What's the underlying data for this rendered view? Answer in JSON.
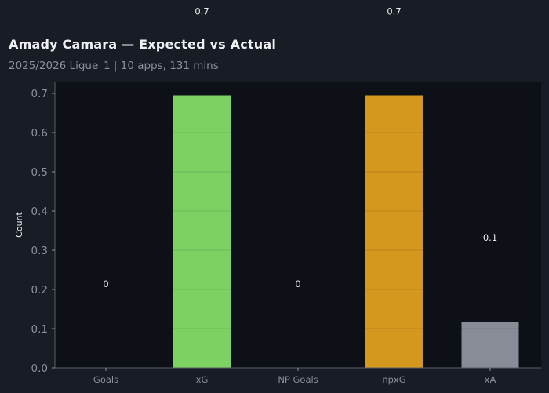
{
  "chart_data": {
    "type": "bar",
    "title": "Amady Camara — Expected vs Actual",
    "subtitle": "2025/2026 Ligue_1 | 10 apps, 131 mins",
    "xlabel": "",
    "ylabel": "Count",
    "ylim": [
      0,
      0.73
    ],
    "yticks": [
      0.0,
      0.1,
      0.2,
      0.3,
      0.4,
      0.5,
      0.6,
      0.7
    ],
    "ytick_labels": [
      "0.0",
      "0.1",
      "0.2",
      "0.3",
      "0.4",
      "0.5",
      "0.6",
      "0.7"
    ],
    "categories": [
      "Goals",
      "xG",
      "NP Goals",
      "npxG",
      "xA"
    ],
    "values": [
      0,
      0.695,
      0,
      0.695,
      0.118
    ],
    "data_labels": [
      "0",
      "0.7",
      "0",
      "0.7",
      "0.1"
    ],
    "colors": [
      "#7dd163",
      "#7dd163",
      "#d4981e",
      "#d4981e",
      "#878c96"
    ],
    "grid": true
  }
}
